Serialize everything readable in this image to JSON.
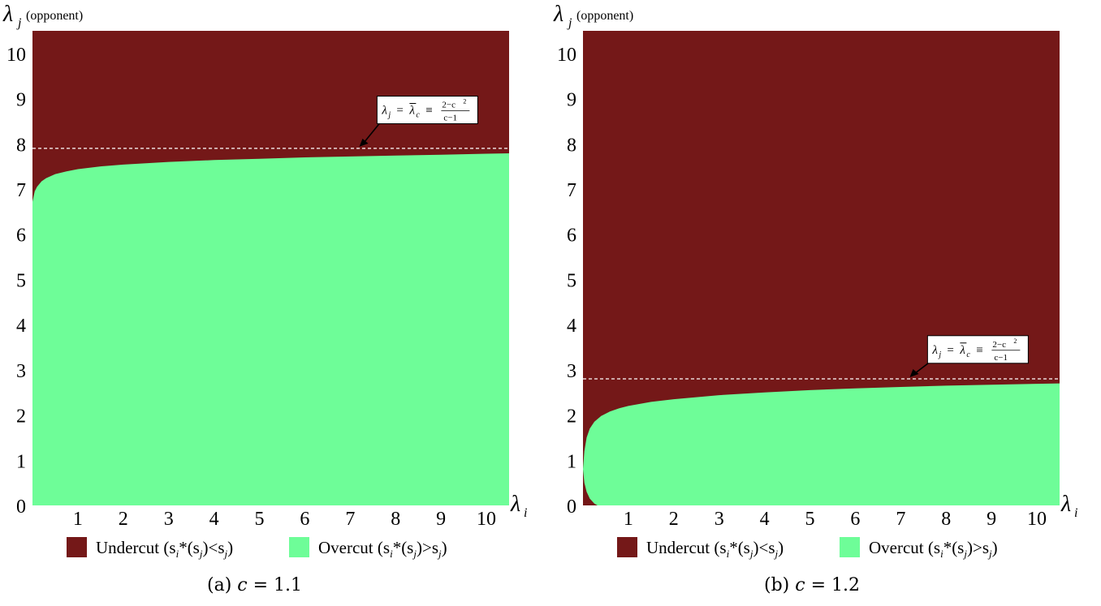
{
  "chart_data": [
    {
      "type": "area",
      "caption": "(a) c = 1.1",
      "caption_letter": "(a)",
      "caption_param": "c",
      "caption_eq": "= 1.1",
      "c": 1.1,
      "y_label_main": "λ",
      "y_label_sub": "j",
      "y_label_note": "(opponent)",
      "x_label_main": "λ",
      "x_label_sub": "i",
      "x_ticks": [
        1,
        2,
        3,
        4,
        5,
        6,
        7,
        8,
        9,
        10
      ],
      "y_ticks": [
        0,
        1,
        2,
        3,
        4,
        5,
        6,
        7,
        8,
        9,
        10
      ],
      "xlim": [
        0,
        10.5
      ],
      "ylim": [
        0,
        10.5
      ],
      "threshold": 7.9,
      "annotation": {
        "lhs": "λ",
        "lhs_sub": "j",
        "eq": "=",
        "rhs": "λ",
        "rhs_sub": "c",
        "equiv": "≡",
        "num": "2−c",
        "num_sup": "2",
        "den": "c−1",
        "anchor_x": 7.2,
        "anchor_y": 7.9,
        "label_x": 8.7,
        "label_y": 8.75
      },
      "boundary": {
        "x": [
          0.0,
          0.05,
          0.1,
          0.2,
          0.3,
          0.5,
          0.75,
          1.0,
          1.5,
          2.0,
          3.0,
          4.0,
          5.0,
          6.0,
          7.0,
          8.0,
          9.0,
          10.0,
          10.5
        ],
        "y": [
          6.72,
          6.95,
          7.05,
          7.17,
          7.24,
          7.33,
          7.39,
          7.44,
          7.5,
          7.54,
          7.6,
          7.64,
          7.67,
          7.7,
          7.72,
          7.74,
          7.76,
          7.78,
          7.79
        ]
      },
      "legend": [
        {
          "label": "Undercut",
          "expr": "(s",
          "sub1": "i",
          "star": "*",
          "mid": "(s",
          "sub2": "j",
          "rel": ")<s",
          "sub3": "j",
          "end": ")",
          "color": "#741818"
        },
        {
          "label": "Overcut",
          "expr": "(s",
          "sub1": "i",
          "star": "*",
          "mid": "(s",
          "sub2": "j",
          "rel": ")>s",
          "sub3": "j",
          "end": ")",
          "color": "#6efd98"
        }
      ]
    },
    {
      "type": "area",
      "caption": "(b) c = 1.2",
      "caption_letter": "(b)",
      "caption_param": "c",
      "caption_eq": "= 1.2",
      "c": 1.2,
      "y_label_main": "λ",
      "y_label_sub": "j",
      "y_label_note": "(opponent)",
      "x_label_main": "λ",
      "x_label_sub": "i",
      "x_ticks": [
        1,
        2,
        3,
        4,
        5,
        6,
        7,
        8,
        9,
        10
      ],
      "y_ticks": [
        0,
        1,
        2,
        3,
        4,
        5,
        6,
        7,
        8,
        9,
        10
      ],
      "xlim": [
        0,
        10.5
      ],
      "ylim": [
        0,
        10.5
      ],
      "threshold": 2.8,
      "annotation": {
        "lhs": "λ",
        "lhs_sub": "j",
        "eq": "=",
        "rhs": "λ",
        "rhs_sub": "c",
        "equiv": "≡",
        "num": "2−c",
        "num_sup": "2",
        "den": "c−1",
        "anchor_x": 7.2,
        "anchor_y": 2.8,
        "label_x": 8.7,
        "label_y": 3.45
      },
      "boundary": {
        "upper": {
          "x": [
            0.0,
            0.03,
            0.08,
            0.15,
            0.25,
            0.4,
            0.6,
            0.8,
            1.0,
            1.5,
            2.0,
            3.0,
            4.0,
            5.0,
            6.0,
            7.0,
            8.0,
            9.0,
            10.0,
            10.5
          ],
          "y": [
            0.8,
            1.2,
            1.5,
            1.7,
            1.85,
            1.98,
            2.08,
            2.15,
            2.2,
            2.29,
            2.35,
            2.44,
            2.5,
            2.55,
            2.59,
            2.62,
            2.65,
            2.67,
            2.69,
            2.7
          ]
        },
        "lower": {
          "x": [
            0.0,
            0.03,
            0.08,
            0.15,
            0.25,
            0.32
          ],
          "y": [
            0.8,
            0.5,
            0.3,
            0.15,
            0.04,
            0.0
          ]
        }
      },
      "legend": [
        {
          "label": "Undercut",
          "expr": "(s",
          "sub1": "i",
          "star": "*",
          "mid": "(s",
          "sub2": "j",
          "rel": ")<s",
          "sub3": "j",
          "end": ")",
          "color": "#741818"
        },
        {
          "label": "Overcut",
          "expr": "(s",
          "sub1": "i",
          "star": "*",
          "mid": "(s",
          "sub2": "j",
          "rel": ")>s",
          "sub3": "j",
          "end": ")",
          "color": "#6efd98"
        }
      ]
    }
  ]
}
